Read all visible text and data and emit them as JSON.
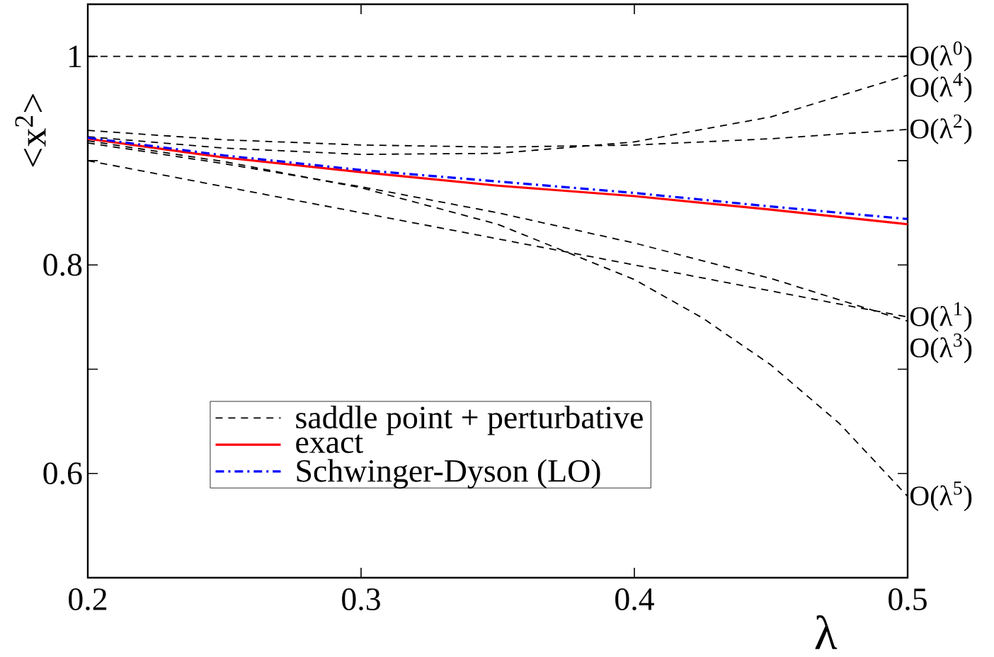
{
  "chart_data": {
    "type": "line",
    "xlabel": "λ",
    "ylabel": "<x$^{2}$>",
    "x": [
      0.2,
      0.25,
      0.3,
      0.35,
      0.4,
      0.45,
      0.5
    ],
    "xlim": [
      0.2,
      0.5
    ],
    "ylim": [
      0.5,
      1.05
    ],
    "xticks": [
      0.2,
      0.3,
      0.4,
      0.5
    ],
    "yticks": [
      0.6,
      {
        "value": 0.7,
        "label": null
      },
      0.8,
      {
        "value": 0.9,
        "label": null
      },
      1
    ],
    "grid": false,
    "legend": "bottom left",
    "marker": "none",
    "series": [
      {
        "name": "O(λ$^{0}$)",
        "color": "#000000",
        "line_style": "dashed",
        "values": [
          1,
          1,
          1,
          1,
          1,
          1,
          1
        ]
      },
      {
        "name": "O(λ$^{4}$)",
        "color": "#000000",
        "line_style": "dashed",
        "values": [
          0.923,
          0.912,
          0.906,
          0.907,
          0.918,
          0.942,
          0.982
        ]
      },
      {
        "name": "O(λ$^{2}$)",
        "color": "#000000",
        "line_style": "dashed",
        "values": [
          0.929,
          0.92,
          0.915,
          0.913,
          0.915,
          0.921,
          0.93
        ]
      },
      {
        "name": "O(λ$^{1}$)",
        "color": "#000000",
        "line_style": "dashed",
        "values": [
          0.9,
          0.875,
          0.85,
          0.825,
          0.8,
          0.775,
          0.75
        ]
      },
      {
        "name": "O(λ$^{3}$)",
        "color": "#000000",
        "line_style": "dashed",
        "values": [
          0.917,
          0.897,
          0.875,
          0.85,
          0.821,
          0.787,
          0.746
        ]
      },
      {
        "name": "O(λ$^{5}$)",
        "color": "#000000",
        "line_style": "dashed",
        "x": [
          0.2,
          0.25,
          0.3,
          0.35,
          0.4,
          0.425,
          0.45,
          0.475,
          0.5
        ],
        "values": [
          0.919,
          0.899,
          0.874,
          0.839,
          0.786,
          0.749,
          0.704,
          0.648,
          0.578
        ]
      },
      {
        "name": "exact",
        "color": "#ff0000",
        "line_style": "solid",
        "values": [
          0.921,
          0.903,
          0.889,
          0.876,
          0.866,
          0.853,
          0.839
        ]
      },
      {
        "name": "Schwinger-Dyson (LO)",
        "color": "#0000ff",
        "line_style": "dashdot",
        "values": [
          0.922,
          0.905,
          0.891,
          0.88,
          0.869,
          0.856,
          0.844
        ]
      }
    ],
    "annotations": [
      "saddle point + perturbative"
    ]
  }
}
